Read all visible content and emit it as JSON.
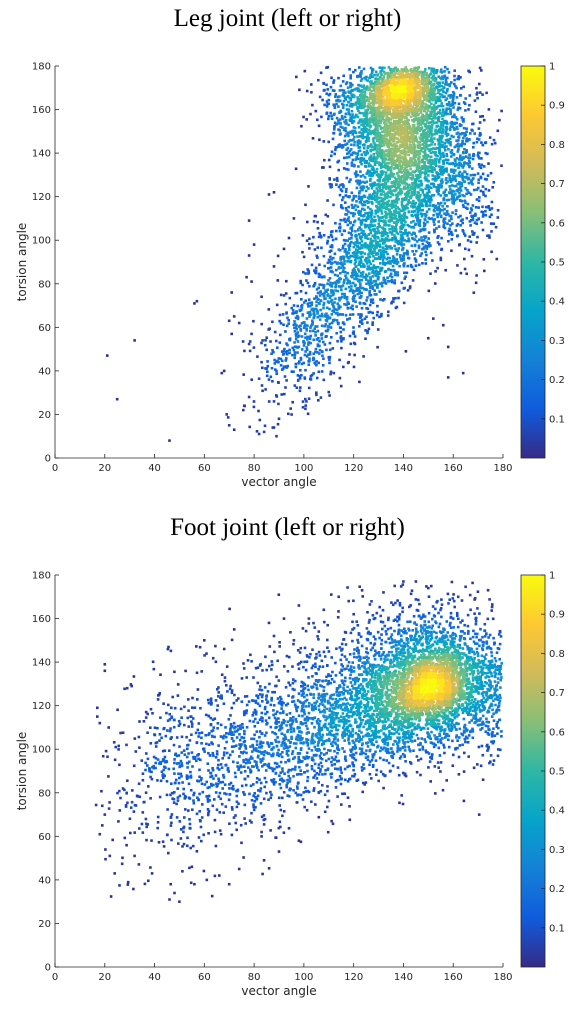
{
  "chart_data": [
    {
      "type": "scatter",
      "title": "Leg joint (left or right)",
      "xlabel": "vector angle",
      "ylabel": "torsion angle",
      "xlim": [
        0,
        180
      ],
      "ylim": [
        0,
        180
      ],
      "xticks": [
        "0",
        "20",
        "40",
        "60",
        "80",
        "100",
        "120",
        "140",
        "160",
        "180"
      ],
      "yticks": [
        "0",
        "20",
        "40",
        "60",
        "80",
        "100",
        "120",
        "140",
        "160",
        "180"
      ],
      "color_by": "normalized point density",
      "colorbar": {
        "min": 0,
        "max": 1,
        "ticks": [
          "0.1",
          "0.2",
          "0.3",
          "0.4",
          "0.5",
          "0.6",
          "0.7",
          "0.8",
          "0.9",
          "1"
        ]
      },
      "colormap": [
        "#352a87",
        "#0f5cdd",
        "#1481d6",
        "#06a4ca",
        "#2eb7a4",
        "#87bf77",
        "#d1bb59",
        "#fec832",
        "#f9fb0e"
      ],
      "density_peak": {
        "x": 138,
        "y": 170
      },
      "outliers": [
        {
          "x": 21,
          "y": 47
        },
        {
          "x": 25,
          "y": 27
        },
        {
          "x": 32,
          "y": 54
        },
        {
          "x": 46,
          "y": 8
        },
        {
          "x": 56,
          "y": 71
        },
        {
          "x": 57,
          "y": 72
        },
        {
          "x": 67,
          "y": 39
        },
        {
          "x": 68,
          "y": 40
        },
        {
          "x": 71,
          "y": 76
        },
        {
          "x": 70,
          "y": 63
        },
        {
          "x": 71,
          "y": 57
        },
        {
          "x": 72,
          "y": 65
        },
        {
          "x": 69,
          "y": 20
        },
        {
          "x": 70,
          "y": 15
        },
        {
          "x": 72,
          "y": 13
        },
        {
          "x": 76,
          "y": 24
        },
        {
          "x": 74,
          "y": 62
        },
        {
          "x": 79,
          "y": 57
        },
        {
          "x": 78,
          "y": 109
        },
        {
          "x": 80,
          "y": 98
        },
        {
          "x": 86,
          "y": 121
        },
        {
          "x": 88,
          "y": 122
        },
        {
          "x": 78,
          "y": 93
        },
        {
          "x": 82,
          "y": 11
        },
        {
          "x": 84,
          "y": 12
        },
        {
          "x": 78,
          "y": 28
        },
        {
          "x": 164,
          "y": 39
        },
        {
          "x": 158,
          "y": 37
        },
        {
          "x": 158,
          "y": 51
        },
        {
          "x": 156,
          "y": 61
        },
        {
          "x": 141,
          "y": 49
        },
        {
          "x": 83,
          "y": 44
        },
        {
          "x": 86,
          "y": 36
        },
        {
          "x": 88,
          "y": 26
        },
        {
          "x": 90,
          "y": 18
        },
        {
          "x": 89,
          "y": 10
        },
        {
          "x": 94,
          "y": 101
        },
        {
          "x": 79,
          "y": 81
        },
        {
          "x": 83,
          "y": 74
        },
        {
          "x": 85,
          "y": 41
        },
        {
          "x": 98,
          "y": 51
        },
        {
          "x": 99,
          "y": 38
        },
        {
          "x": 101,
          "y": 26
        },
        {
          "x": 120,
          "y": 58
        },
        {
          "x": 118,
          "y": 44
        },
        {
          "x": 115,
          "y": 33
        },
        {
          "x": 152,
          "y": 64
        },
        {
          "x": 150,
          "y": 55
        },
        {
          "x": 88,
          "y": 88
        },
        {
          "x": 92,
          "y": 96
        },
        {
          "x": 96,
          "y": 110
        },
        {
          "x": 110,
          "y": 46
        },
        {
          "x": 112,
          "y": 39
        },
        {
          "x": 105,
          "y": 30
        },
        {
          "x": 88,
          "y": 14
        },
        {
          "x": 77,
          "y": 83
        }
      ]
    },
    {
      "type": "scatter",
      "title": "Foot joint (left or right)",
      "xlabel": "vector angle",
      "ylabel": "torsion angle",
      "xlim": [
        0,
        180
      ],
      "ylim": [
        0,
        180
      ],
      "xticks": [
        "0",
        "20",
        "40",
        "60",
        "80",
        "100",
        "120",
        "140",
        "160",
        "180"
      ],
      "yticks": [
        "0",
        "20",
        "40",
        "60",
        "80",
        "100",
        "120",
        "140",
        "160",
        "180"
      ],
      "color_by": "normalized point density",
      "colorbar": {
        "min": 0,
        "max": 1,
        "ticks": [
          "0.1",
          "0.2",
          "0.3",
          "0.4",
          "0.5",
          "0.6",
          "0.7",
          "0.8",
          "0.9",
          "1"
        ]
      },
      "colormap": [
        "#352a87",
        "#0f5cdd",
        "#1481d6",
        "#06a4ca",
        "#2eb7a4",
        "#87bf77",
        "#d1bb59",
        "#fec832",
        "#f9fb0e"
      ],
      "density_peak": {
        "x": 152,
        "y": 130
      },
      "outliers": [
        {
          "x": 17,
          "y": 119
        },
        {
          "x": 17,
          "y": 115
        },
        {
          "x": 18,
          "y": 112
        },
        {
          "x": 19,
          "y": 65
        },
        {
          "x": 18,
          "y": 61
        },
        {
          "x": 19,
          "y": 74
        },
        {
          "x": 20,
          "y": 70
        },
        {
          "x": 20,
          "y": 136
        },
        {
          "x": 20,
          "y": 139
        },
        {
          "x": 22,
          "y": 51
        },
        {
          "x": 24,
          "y": 43
        },
        {
          "x": 29,
          "y": 128
        },
        {
          "x": 32,
          "y": 51
        },
        {
          "x": 39,
          "y": 43
        },
        {
          "x": 46,
          "y": 31
        },
        {
          "x": 48,
          "y": 34
        },
        {
          "x": 50,
          "y": 30
        },
        {
          "x": 55,
          "y": 46
        },
        {
          "x": 56,
          "y": 38
        },
        {
          "x": 61,
          "y": 40
        },
        {
          "x": 66,
          "y": 42
        },
        {
          "x": 70,
          "y": 38
        },
        {
          "x": 74,
          "y": 45
        },
        {
          "x": 84,
          "y": 49
        },
        {
          "x": 83,
          "y": 62
        },
        {
          "x": 90,
          "y": 53
        },
        {
          "x": 98,
          "y": 58
        },
        {
          "x": 108,
          "y": 164
        },
        {
          "x": 111,
          "y": 171
        },
        {
          "x": 114,
          "y": 170
        },
        {
          "x": 118,
          "y": 168
        },
        {
          "x": 120,
          "y": 162
        },
        {
          "x": 132,
          "y": 172
        },
        {
          "x": 140,
          "y": 177
        },
        {
          "x": 145,
          "y": 177
        },
        {
          "x": 150,
          "y": 174
        },
        {
          "x": 162,
          "y": 170
        },
        {
          "x": 174,
          "y": 173
        },
        {
          "x": 167,
          "y": 164
        },
        {
          "x": 98,
          "y": 166
        },
        {
          "x": 102,
          "y": 160
        },
        {
          "x": 106,
          "y": 154
        },
        {
          "x": 172,
          "y": 86
        },
        {
          "x": 176,
          "y": 93
        },
        {
          "x": 178,
          "y": 97
        },
        {
          "x": 60,
          "y": 150
        },
        {
          "x": 68,
          "y": 146
        },
        {
          "x": 72,
          "y": 155
        },
        {
          "x": 88,
          "y": 152
        },
        {
          "x": 92,
          "y": 160
        },
        {
          "x": 96,
          "y": 150
        },
        {
          "x": 86,
          "y": 158
        }
      ]
    }
  ]
}
